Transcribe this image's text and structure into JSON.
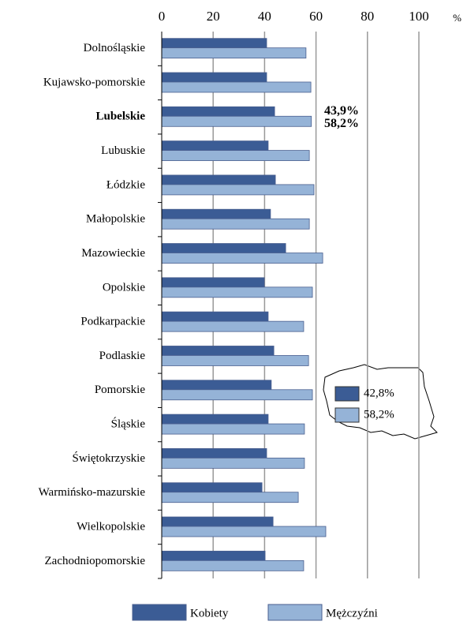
{
  "chart_data": {
    "type": "bar",
    "orientation": "horizontal",
    "categories": [
      "Dolnośląskie",
      "Kujawsko-pomorskie",
      "Lubelskie",
      "Lubuskie",
      "Łódzkie",
      "Małopolskie",
      "Mazowieckie",
      "Opolskie",
      "Podkarpackie",
      "Podlaskie",
      "Pomorskie",
      "Śląskie",
      "Świętokrzyskie",
      "Warmińsko-mazurskie",
      "Wielkopolskie",
      "Zachodniopomorskie"
    ],
    "series": [
      {
        "name": "Kobiety",
        "color": "#3b5c95",
        "values": [
          40.8,
          40.8,
          43.9,
          41.4,
          44.2,
          42.3,
          48.2,
          39.9,
          41.4,
          43.6,
          42.6,
          41.4,
          40.8,
          39.0,
          43.3,
          40.2
        ]
      },
      {
        "name": "Mężczyźni",
        "color": "#95b3d7",
        "values": [
          56.1,
          58.0,
          58.2,
          57.4,
          59.2,
          57.4,
          62.6,
          58.6,
          55.2,
          57.1,
          58.6,
          55.5,
          55.5,
          53.1,
          63.8,
          55.2
        ]
      }
    ],
    "xlim": [
      0,
      100
    ],
    "xticks": [
      0,
      20,
      40,
      60,
      80,
      100
    ],
    "xlabel": "%",
    "grid": true,
    "highlight_index": 2,
    "annotations": [
      "43,9%",
      "58,2%"
    ],
    "map_legend": [
      "42,8%",
      "58,2%"
    ]
  }
}
